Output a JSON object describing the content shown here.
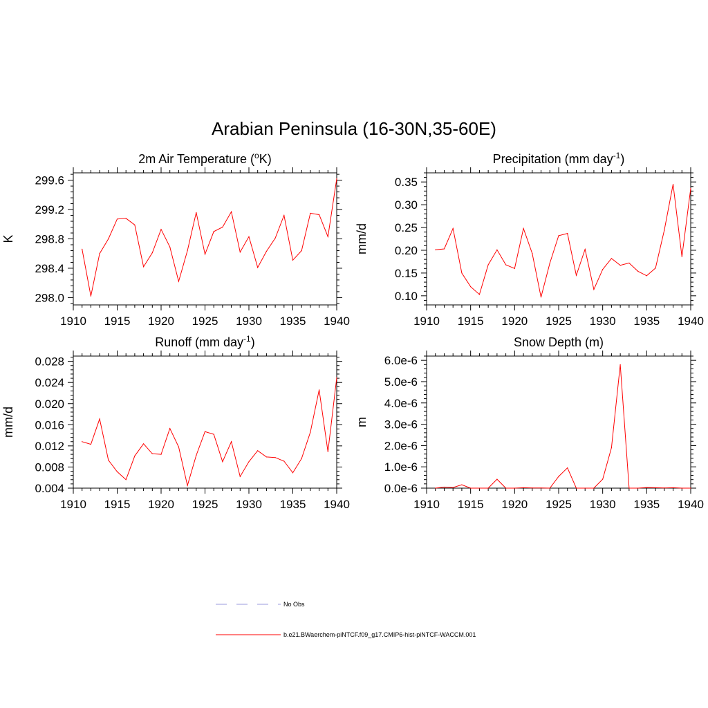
{
  "title": "Arabian Peninsula (16-30N,35-60E)",
  "chart_data": [
    {
      "type": "line",
      "title": "2m Air Temperature (",
      "title_sup": "o",
      "title_end": "K)",
      "ylabel": "K",
      "xlim": [
        1910,
        1940
      ],
      "ylim": [
        297.9,
        299.7
      ],
      "x_ticks": [
        "1910",
        "1915",
        "1920",
        "1925",
        "1930",
        "1935",
        "1940"
      ],
      "y_ticks": [
        298.0,
        298.4,
        298.8,
        299.2,
        299.6
      ],
      "y_tick_labels": [
        "298.0",
        "298.4",
        "298.8",
        "299.2",
        "299.6"
      ],
      "x": [
        1911,
        1912,
        1913,
        1914,
        1915,
        1916,
        1917,
        1918,
        1919,
        1920,
        1921,
        1922,
        1923,
        1924,
        1925,
        1926,
        1927,
        1928,
        1929,
        1930,
        1931,
        1932,
        1933,
        1934,
        1935,
        1936,
        1937,
        1938,
        1939,
        1940
      ],
      "series": [
        {
          "color": "#ff0000",
          "values": [
            298.66,
            298.02,
            298.6,
            298.8,
            299.07,
            299.08,
            298.99,
            298.42,
            298.61,
            298.93,
            298.69,
            298.22,
            298.64,
            299.16,
            298.59,
            298.9,
            298.96,
            299.17,
            298.62,
            298.83,
            298.41,
            298.63,
            298.81,
            299.12,
            298.51,
            298.64,
            299.15,
            299.13,
            298.83,
            299.62
          ]
        }
      ]
    },
    {
      "type": "line",
      "title": "Precipitation (mm day",
      "title_sup": "-1",
      "title_end": ")",
      "ylabel": "mm/d",
      "xlim": [
        1910,
        1940
      ],
      "ylim": [
        0.08,
        0.37
      ],
      "x_ticks": [
        "1910",
        "1915",
        "1920",
        "1925",
        "1930",
        "1935",
        "1940"
      ],
      "y_ticks": [
        0.1,
        0.15,
        0.2,
        0.25,
        0.3,
        0.35
      ],
      "y_tick_labels": [
        "0.10",
        "0.15",
        "0.20",
        "0.25",
        "0.30",
        "0.35"
      ],
      "x": [
        1911,
        1912,
        1913,
        1914,
        1915,
        1916,
        1917,
        1918,
        1919,
        1920,
        1921,
        1922,
        1923,
        1924,
        1925,
        1926,
        1927,
        1928,
        1929,
        1930,
        1931,
        1932,
        1933,
        1934,
        1935,
        1936,
        1937,
        1938,
        1939,
        1940
      ],
      "series": [
        {
          "color": "#ff0000",
          "values": [
            0.201,
            0.203,
            0.248,
            0.15,
            0.12,
            0.103,
            0.168,
            0.201,
            0.168,
            0.16,
            0.248,
            0.193,
            0.097,
            0.172,
            0.232,
            0.237,
            0.145,
            0.202,
            0.114,
            0.158,
            0.182,
            0.167,
            0.172,
            0.154,
            0.144,
            0.161,
            0.244,
            0.345,
            0.186,
            0.336
          ]
        }
      ]
    },
    {
      "type": "line",
      "title": "Runoff (mm day",
      "title_sup": "-1",
      "title_end": ")",
      "ylabel": "mm/d",
      "xlim": [
        1910,
        1940
      ],
      "ylim": [
        0.004,
        0.029
      ],
      "x_ticks": [
        "1910",
        "1915",
        "1920",
        "1925",
        "1930",
        "1935",
        "1940"
      ],
      "y_ticks": [
        0.004,
        0.008,
        0.012,
        0.016,
        0.02,
        0.024,
        0.028
      ],
      "y_tick_labels": [
        "0.004",
        "0.008",
        "0.012",
        "0.016",
        "0.020",
        "0.024",
        "0.028"
      ],
      "x": [
        1911,
        1912,
        1913,
        1914,
        1915,
        1916,
        1917,
        1918,
        1919,
        1920,
        1921,
        1922,
        1923,
        1924,
        1925,
        1926,
        1927,
        1928,
        1929,
        1930,
        1931,
        1932,
        1933,
        1934,
        1935,
        1936,
        1937,
        1938,
        1939,
        1940
      ],
      "series": [
        {
          "color": "#ff0000",
          "values": [
            0.0128,
            0.0123,
            0.0171,
            0.0093,
            0.0071,
            0.0056,
            0.0101,
            0.0124,
            0.0105,
            0.0104,
            0.0153,
            0.0118,
            0.0045,
            0.0102,
            0.0147,
            0.0142,
            0.009,
            0.0128,
            0.0062,
            0.009,
            0.0111,
            0.0099,
            0.0098,
            0.0091,
            0.0069,
            0.0096,
            0.0146,
            0.0226,
            0.0109,
            0.0249
          ]
        }
      ]
    },
    {
      "type": "line",
      "title": "Snow Depth (m)",
      "title_sup": "",
      "title_end": "",
      "ylabel": "m",
      "xlim": [
        1910,
        1940
      ],
      "ylim": [
        0,
        6.2e-06
      ],
      "x_ticks": [
        "1910",
        "1915",
        "1920",
        "1925",
        "1930",
        "1935",
        "1940"
      ],
      "y_ticks": [
        0,
        1e-06,
        2e-06,
        3e-06,
        4e-06,
        5e-06,
        6e-06
      ],
      "y_tick_labels": [
        "0.0e-6",
        "1.0e-6",
        "2.0e-6",
        "3.0e-6",
        "4.0e-6",
        "5.0e-6",
        "6.0e-6"
      ],
      "x": [
        1911,
        1912,
        1913,
        1914,
        1915,
        1916,
        1917,
        1918,
        1919,
        1920,
        1921,
        1922,
        1923,
        1924,
        1925,
        1926,
        1927,
        1928,
        1929,
        1930,
        1931,
        1932,
        1933,
        1934,
        1935,
        1936,
        1937,
        1938,
        1939,
        1940
      ],
      "series": [
        {
          "color": "#ff0000",
          "values": [
            0,
            5e-08,
            3e-08,
            1.6e-07,
            0,
            0,
            0,
            4.2e-07,
            0,
            0,
            2e-08,
            1e-08,
            1e-08,
            0,
            5.5e-07,
            9.5e-07,
            0,
            0,
            0,
            4.2e-07,
            1.9e-06,
            5.8e-06,
            0,
            0,
            3e-08,
            2e-08,
            1e-08,
            2e-08,
            0,
            0
          ]
        }
      ]
    }
  ],
  "legend": [
    {
      "label": "No Obs",
      "color": "#9999dd",
      "style": "dashed"
    },
    {
      "label": "b.e21.BWaerchem-piNTCF.f09_g17.CMIP6-hist-piNTCF-WACCM.001",
      "color": "#ff0000",
      "style": "solid"
    }
  ]
}
